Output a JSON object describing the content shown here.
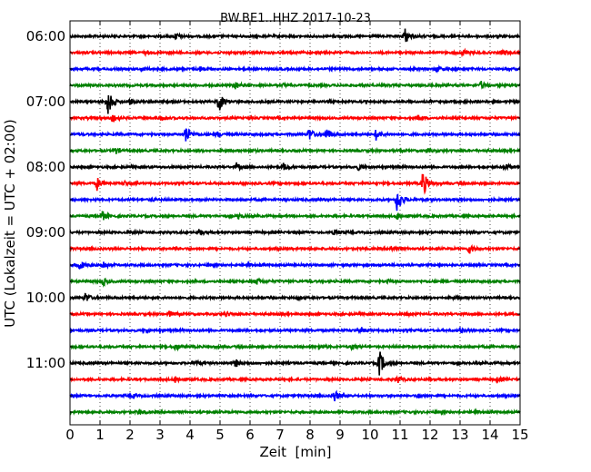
{
  "chart_data": {
    "type": "line",
    "title": "BW.BE1..HHZ 2017-10-23",
    "xlabel": "Zeit  [min]",
    "ylabel": "UTC (Lokalzeit = UTC + 02:00)",
    "xlim": [
      0,
      15
    ],
    "x_ticks": [
      "0",
      "1",
      "2",
      "3",
      "4",
      "5",
      "6",
      "7",
      "8",
      "9",
      "10",
      "11",
      "12",
      "13",
      "14",
      "15"
    ],
    "y_tick_labels": [
      "06:00",
      "07:00",
      "08:00",
      "09:00",
      "10:00",
      "11:00"
    ],
    "grid": "vertical dotted",
    "trace_interval_minutes": 15,
    "trace_colors": [
      "#000000",
      "#ff0000",
      "#0000ff",
      "#008000"
    ],
    "traces": [
      {
        "start": "06:00",
        "events": [
          [
            3.5,
            0.25
          ],
          [
            11.15,
            0.6
          ],
          [
            8.9,
            0.1
          ]
        ]
      },
      {
        "start": "06:15",
        "events": [
          [
            13.1,
            0.25
          ],
          [
            14.4,
            0.2
          ],
          [
            2.5,
            0.1
          ]
        ]
      },
      {
        "start": "06:30",
        "events": [
          [
            4.3,
            0.2
          ],
          [
            12.2,
            0.2
          ],
          [
            2.4,
            0.1
          ]
        ]
      },
      {
        "start": "06:45",
        "events": [
          [
            5.5,
            0.25
          ],
          [
            13.7,
            0.25
          ],
          [
            7.1,
            0.1
          ]
        ]
      },
      {
        "start": "07:00",
        "events": [
          [
            1.25,
            1.0
          ],
          [
            4.95,
            0.75
          ],
          [
            2.0,
            0.2
          ]
        ]
      },
      {
        "start": "07:15",
        "events": [
          [
            1.4,
            0.35
          ],
          [
            11.6,
            0.2
          ],
          [
            3.0,
            0.15
          ]
        ]
      },
      {
        "start": "07:30",
        "events": [
          [
            3.85,
            0.7
          ],
          [
            7.95,
            0.5
          ],
          [
            8.55,
            0.45
          ],
          [
            10.2,
            0.4
          ],
          [
            4.9,
            0.2
          ]
        ]
      },
      {
        "start": "07:45",
        "events": [
          [
            1.5,
            0.25
          ],
          [
            11.9,
            0.15
          ],
          [
            6.0,
            0.1
          ]
        ]
      },
      {
        "start": "08:00",
        "events": [
          [
            5.55,
            0.25
          ],
          [
            7.1,
            0.25
          ],
          [
            9.6,
            0.2
          ],
          [
            14.5,
            0.2
          ]
        ]
      },
      {
        "start": "08:15",
        "events": [
          [
            0.9,
            0.45
          ],
          [
            11.75,
            1.0
          ],
          [
            1.8,
            0.15
          ]
        ]
      },
      {
        "start": "08:30",
        "events": [
          [
            10.9,
            1.0
          ],
          [
            2.7,
            0.1
          ]
        ]
      },
      {
        "start": "08:45",
        "events": [
          [
            1.05,
            0.4
          ],
          [
            5.6,
            0.2
          ],
          [
            10.9,
            0.3
          ]
        ]
      },
      {
        "start": "09:00",
        "events": [
          [
            4.3,
            0.25
          ],
          [
            8.8,
            0.2
          ],
          [
            2.0,
            0.1
          ]
        ]
      },
      {
        "start": "09:15",
        "events": [
          [
            13.3,
            0.35
          ],
          [
            10.7,
            0.2
          ],
          [
            3.5,
            0.1
          ]
        ]
      },
      {
        "start": "09:30",
        "events": [
          [
            0.3,
            0.35
          ],
          [
            1.1,
            0.3
          ],
          [
            5.9,
            0.1
          ]
        ]
      },
      {
        "start": "09:45",
        "events": [
          [
            1.1,
            0.25
          ],
          [
            6.2,
            0.25
          ],
          [
            10.6,
            0.1
          ]
        ]
      },
      {
        "start": "10:00",
        "events": [
          [
            0.5,
            0.35
          ],
          [
            7.6,
            0.1
          ],
          [
            12.8,
            0.1
          ]
        ]
      },
      {
        "start": "10:15",
        "events": [
          [
            3.3,
            0.2
          ],
          [
            5.2,
            0.15
          ],
          [
            11.2,
            0.1
          ]
        ]
      },
      {
        "start": "10:30",
        "events": [
          [
            9.7,
            0.2
          ],
          [
            13.0,
            0.15
          ],
          [
            2.5,
            0.1
          ]
        ]
      },
      {
        "start": "10:45",
        "events": [
          [
            3.5,
            0.25
          ],
          [
            8.3,
            0.2
          ],
          [
            9.4,
            0.25
          ]
        ]
      },
      {
        "start": "11:00",
        "events": [
          [
            5.5,
            0.3
          ],
          [
            10.3,
            1.0
          ],
          [
            4.2,
            0.15
          ]
        ]
      },
      {
        "start": "11:15",
        "events": [
          [
            3.5,
            0.25
          ],
          [
            10.9,
            0.25
          ],
          [
            14.2,
            0.2
          ]
        ]
      },
      {
        "start": "11:30",
        "events": [
          [
            8.8,
            0.45
          ],
          [
            11.6,
            0.15
          ],
          [
            2.1,
            0.1
          ]
        ]
      },
      {
        "start": "11:45",
        "events": [
          [
            2.3,
            0.2
          ],
          [
            13.5,
            0.1
          ]
        ]
      }
    ]
  }
}
